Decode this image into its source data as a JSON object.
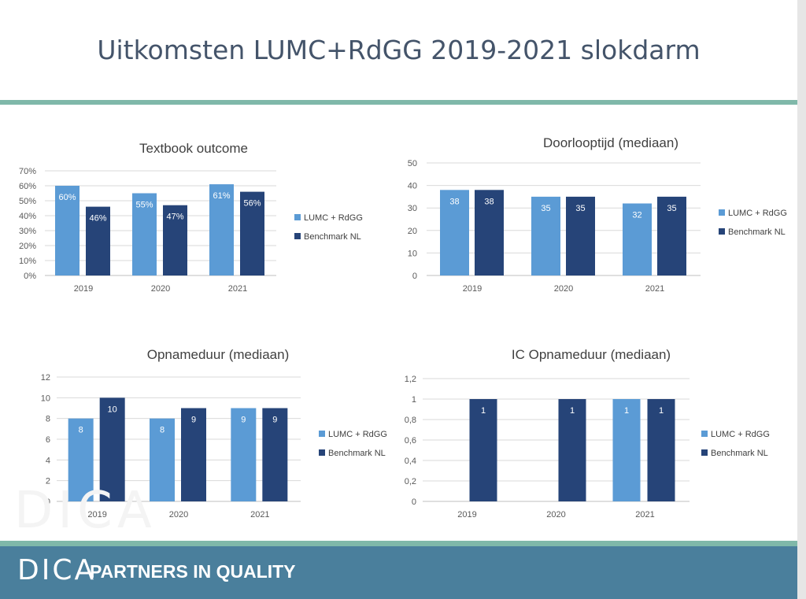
{
  "page": {
    "title": "Uitkomsten LUMC+RdGG 2019-2021 slokdarm",
    "footer_logo": "DICA",
    "footer_tagline": "PARTNERS IN QUALITY"
  },
  "colors": {
    "lumc": "#5b9bd5",
    "benchmark": "#264478",
    "accent_bar": "#7fb8a9",
    "footer": "#4a7f9c",
    "title": "#44546a"
  },
  "chart_data": [
    {
      "type": "bar",
      "title": "Textbook outcome",
      "categories": [
        "2019",
        "2020",
        "2021"
      ],
      "series": [
        {
          "name": "LUMC + RdGG",
          "values": [
            60,
            55,
            61
          ],
          "labels": [
            "60%",
            "55%",
            "61%"
          ]
        },
        {
          "name": "Benchmark NL",
          "values": [
            46,
            47,
            56
          ],
          "labels": [
            "46%",
            "47%",
            "56%"
          ]
        }
      ],
      "ylim": [
        0,
        70
      ],
      "yticks": [
        "0%",
        "10%",
        "20%",
        "30%",
        "40%",
        "50%",
        "60%",
        "70%"
      ],
      "legend": "right",
      "grid": true
    },
    {
      "type": "bar",
      "title": "Doorlooptijd (mediaan)",
      "categories": [
        "2019",
        "2020",
        "2021"
      ],
      "series": [
        {
          "name": "LUMC + RdGG",
          "values": [
            38,
            35,
            32
          ],
          "labels": [
            "38",
            "35",
            "32"
          ]
        },
        {
          "name": "Benchmark NL",
          "values": [
            38,
            35,
            35
          ],
          "labels": [
            "38",
            "35",
            "35"
          ]
        }
      ],
      "ylim": [
        0,
        50
      ],
      "yticks": [
        "0",
        "10",
        "20",
        "30",
        "40",
        "50"
      ],
      "legend": "right",
      "grid": true
    },
    {
      "type": "bar",
      "title": "Opnameduur (mediaan)",
      "categories": [
        "2019",
        "2020",
        "2021"
      ],
      "series": [
        {
          "name": "LUMC + RdGG",
          "values": [
            8,
            8,
            9
          ],
          "labels": [
            "8",
            "8",
            "9"
          ]
        },
        {
          "name": "Benchmark NL",
          "values": [
            10,
            9,
            9
          ],
          "labels": [
            "10",
            "9",
            "9"
          ]
        }
      ],
      "ylim": [
        0,
        12
      ],
      "yticks": [
        "0",
        "2",
        "4",
        "6",
        "8",
        "10",
        "12"
      ],
      "legend": "right",
      "grid": true
    },
    {
      "type": "bar",
      "title": "IC Opnameduur (mediaan)",
      "categories": [
        "2019",
        "2020",
        "2021"
      ],
      "series": [
        {
          "name": "LUMC + RdGG",
          "values": [
            null,
            null,
            1
          ],
          "labels": [
            "",
            "",
            "1"
          ]
        },
        {
          "name": "Benchmark NL",
          "values": [
            1,
            1,
            1
          ],
          "labels": [
            "1",
            "1",
            "1"
          ]
        }
      ],
      "ylim": [
        0,
        1.2
      ],
      "yticks": [
        "0",
        "0,2",
        "0,4",
        "0,6",
        "0,8",
        "1",
        "1,2"
      ],
      "legend": "right",
      "grid": true
    }
  ]
}
